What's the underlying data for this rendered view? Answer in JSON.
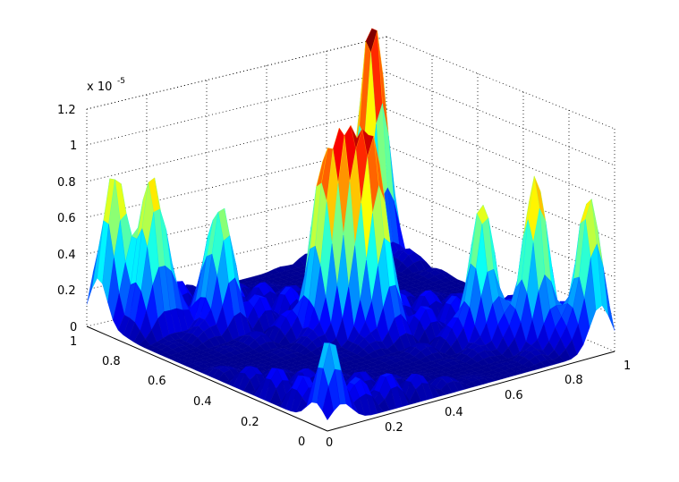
{
  "chart_data": {
    "type": "surface",
    "title": "",
    "xlabel": "",
    "ylabel": "",
    "zlabel": "",
    "z_multiplier_label": "x 10",
    "z_multiplier_exponent": "-5",
    "xlim": [
      0,
      1
    ],
    "ylim": [
      0,
      1
    ],
    "zlim": [
      0,
      1.2
    ],
    "x_ticks": [
      "0",
      "0.2",
      "0.4",
      "0.6",
      "0.8",
      "1"
    ],
    "y_ticks": [
      "0",
      "0.2",
      "0.4",
      "0.6",
      "0.8",
      "1"
    ],
    "z_ticks": [
      "0",
      "0.2",
      "0.4",
      "0.6",
      "0.8",
      "1",
      "1.2"
    ],
    "colormap": "jet",
    "grid": true,
    "peaks": [
      {
        "x": 0.95,
        "y": 0.95,
        "z": 1.25
      },
      {
        "x": 0.5,
        "y": 0.5,
        "z": 0.9
      },
      {
        "x": 0.45,
        "y": 0.55,
        "z": 0.85
      },
      {
        "x": 0.55,
        "y": 0.45,
        "z": 0.85
      },
      {
        "x": 0.05,
        "y": 0.95,
        "z": 0.75
      },
      {
        "x": 0.1,
        "y": 0.85,
        "z": 0.85
      },
      {
        "x": 0.95,
        "y": 0.05,
        "z": 0.7
      },
      {
        "x": 0.85,
        "y": 0.15,
        "z": 0.8
      },
      {
        "x": 0.25,
        "y": 0.75,
        "z": 0.65
      },
      {
        "x": 0.75,
        "y": 0.25,
        "z": 0.65
      },
      {
        "x": 0.05,
        "y": 0.05,
        "z": 0.3
      }
    ]
  }
}
